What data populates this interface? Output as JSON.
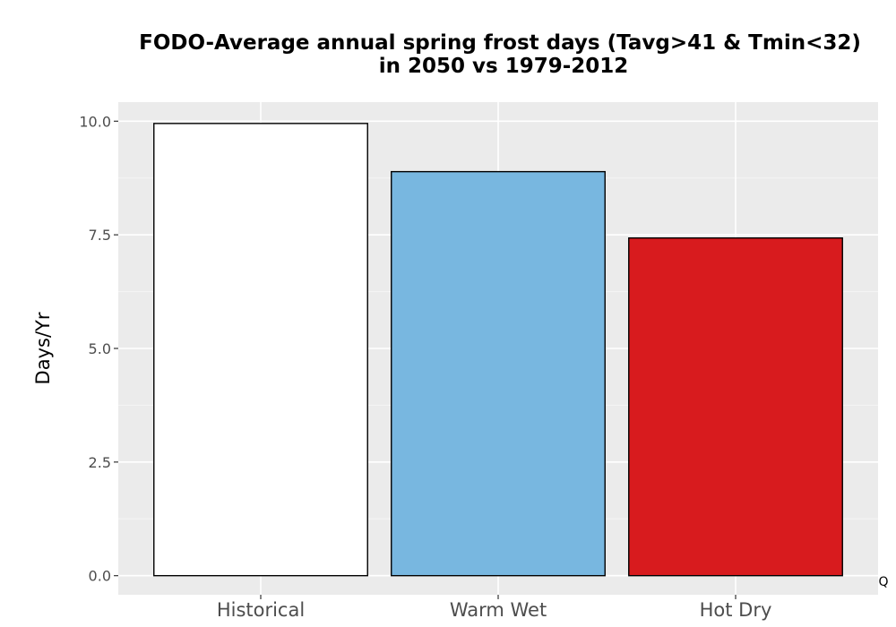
{
  "chart_data": {
    "type": "bar",
    "title_line1": "FODO-Average annual spring frost days (Tavg>41 & Tmin<32)",
    "title_line2": "in 2050 vs 1979-2012",
    "ylabel": "Days/Yr",
    "xlabel": "",
    "categories": [
      "Historical",
      "Warm Wet",
      "Hot Dry"
    ],
    "values": [
      9.95,
      8.89,
      7.43
    ],
    "colors": [
      "#ffffff",
      "#78b7e0",
      "#d81b1e"
    ],
    "ylim": [
      -0.42,
      10.42
    ],
    "yticks": [
      0.0,
      2.5,
      5.0,
      7.5,
      10.0
    ],
    "ytick_labels": [
      "0.0",
      "2.5",
      "5.0",
      "7.5",
      "10.0"
    ],
    "grid": true,
    "legend": "none",
    "corner_note": "Q"
  }
}
